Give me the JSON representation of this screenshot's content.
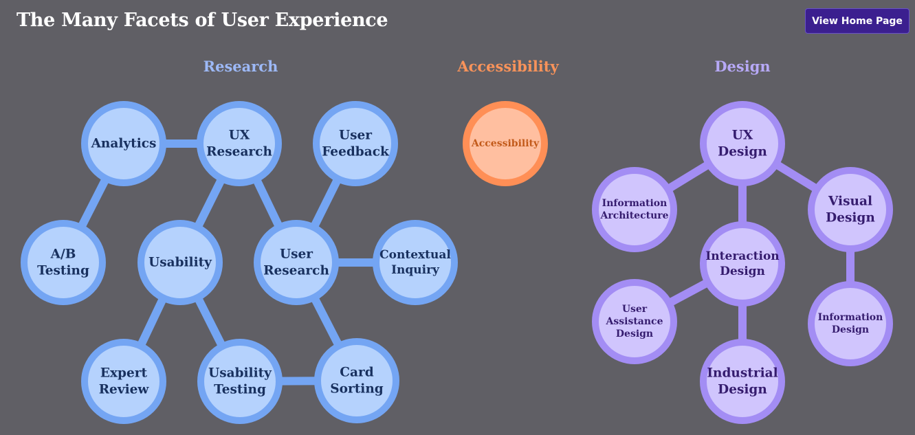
{
  "header": {
    "title": "The Many Facets of User Experience",
    "home_button_label": "View Home Page"
  },
  "colors": {
    "background": "#605f65",
    "research_stroke": "#74a5f3",
    "research_fill": "#b5d2fd",
    "research_text": "#18305e",
    "access_stroke": "#ff8f56",
    "access_fill": "#ffbfa0",
    "access_text": "#c25a1a",
    "design_stroke": "#a38df4",
    "design_fill": "#d0c5fd",
    "design_text": "#351c6e"
  },
  "sections": [
    {
      "id": "research",
      "heading": "Research"
    },
    {
      "id": "accessibility",
      "heading": "Accessibility"
    },
    {
      "id": "design",
      "heading": "Design"
    }
  ],
  "nodes": [
    {
      "id": "analytics",
      "group": "research",
      "lines": [
        "Analytics"
      ]
    },
    {
      "id": "ux-research",
      "group": "research",
      "lines": [
        "UX",
        "Research"
      ]
    },
    {
      "id": "user-feedback",
      "group": "research",
      "lines": [
        "User",
        "Feedback"
      ]
    },
    {
      "id": "ab-testing",
      "group": "research",
      "lines": [
        "A/B",
        "Testing"
      ]
    },
    {
      "id": "usability",
      "group": "research",
      "lines": [
        "Usability"
      ]
    },
    {
      "id": "user-research",
      "group": "research",
      "lines": [
        "User",
        "Research"
      ]
    },
    {
      "id": "contextual-inquiry",
      "group": "research",
      "lines": [
        "Contextual",
        "Inquiry"
      ]
    },
    {
      "id": "expert-review",
      "group": "research",
      "lines": [
        "Expert",
        "Review"
      ]
    },
    {
      "id": "usability-testing",
      "group": "research",
      "lines": [
        "Usability",
        "Testing"
      ]
    },
    {
      "id": "card-sorting",
      "group": "research",
      "lines": [
        "Card",
        "Sorting"
      ]
    },
    {
      "id": "accessibility",
      "group": "access",
      "lines": [
        "Accessibility"
      ]
    },
    {
      "id": "ux-design",
      "group": "design",
      "lines": [
        "UX",
        "Design"
      ]
    },
    {
      "id": "information-architecture",
      "group": "design",
      "lines": [
        "Information",
        "Architecture"
      ]
    },
    {
      "id": "visual-design",
      "group": "design",
      "lines": [
        "Visual",
        "Design"
      ]
    },
    {
      "id": "interaction-design",
      "group": "design",
      "lines": [
        "Interaction",
        "Design"
      ]
    },
    {
      "id": "user-assistance-design",
      "group": "design",
      "lines": [
        "User",
        "Assistance",
        "Design"
      ]
    },
    {
      "id": "information-design",
      "group": "design",
      "lines": [
        "Information",
        "Design"
      ]
    },
    {
      "id": "industrial-design",
      "group": "design",
      "lines": [
        "Industrial",
        "Design"
      ]
    }
  ],
  "edges": [
    [
      "analytics",
      "ux-research"
    ],
    [
      "analytics",
      "ab-testing"
    ],
    [
      "ux-research",
      "usability"
    ],
    [
      "ux-research",
      "user-research"
    ],
    [
      "user-feedback",
      "user-research"
    ],
    [
      "user-research",
      "contextual-inquiry"
    ],
    [
      "usability",
      "expert-review"
    ],
    [
      "usability",
      "usability-testing"
    ],
    [
      "user-research",
      "card-sorting"
    ],
    [
      "usability-testing",
      "card-sorting"
    ],
    [
      "ux-design",
      "information-architecture"
    ],
    [
      "ux-design",
      "visual-design"
    ],
    [
      "ux-design",
      "interaction-design"
    ],
    [
      "interaction-design",
      "user-assistance-design"
    ],
    [
      "interaction-design",
      "industrial-design"
    ],
    [
      "visual-design",
      "information-design"
    ]
  ]
}
